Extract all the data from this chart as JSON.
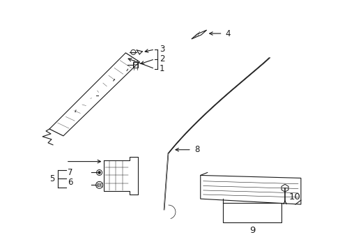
{
  "background_color": "#ffffff",
  "line_color": "#1a1a1a",
  "fig_width": 4.89,
  "fig_height": 3.6,
  "dpi": 100,
  "label_fs": 8.5
}
